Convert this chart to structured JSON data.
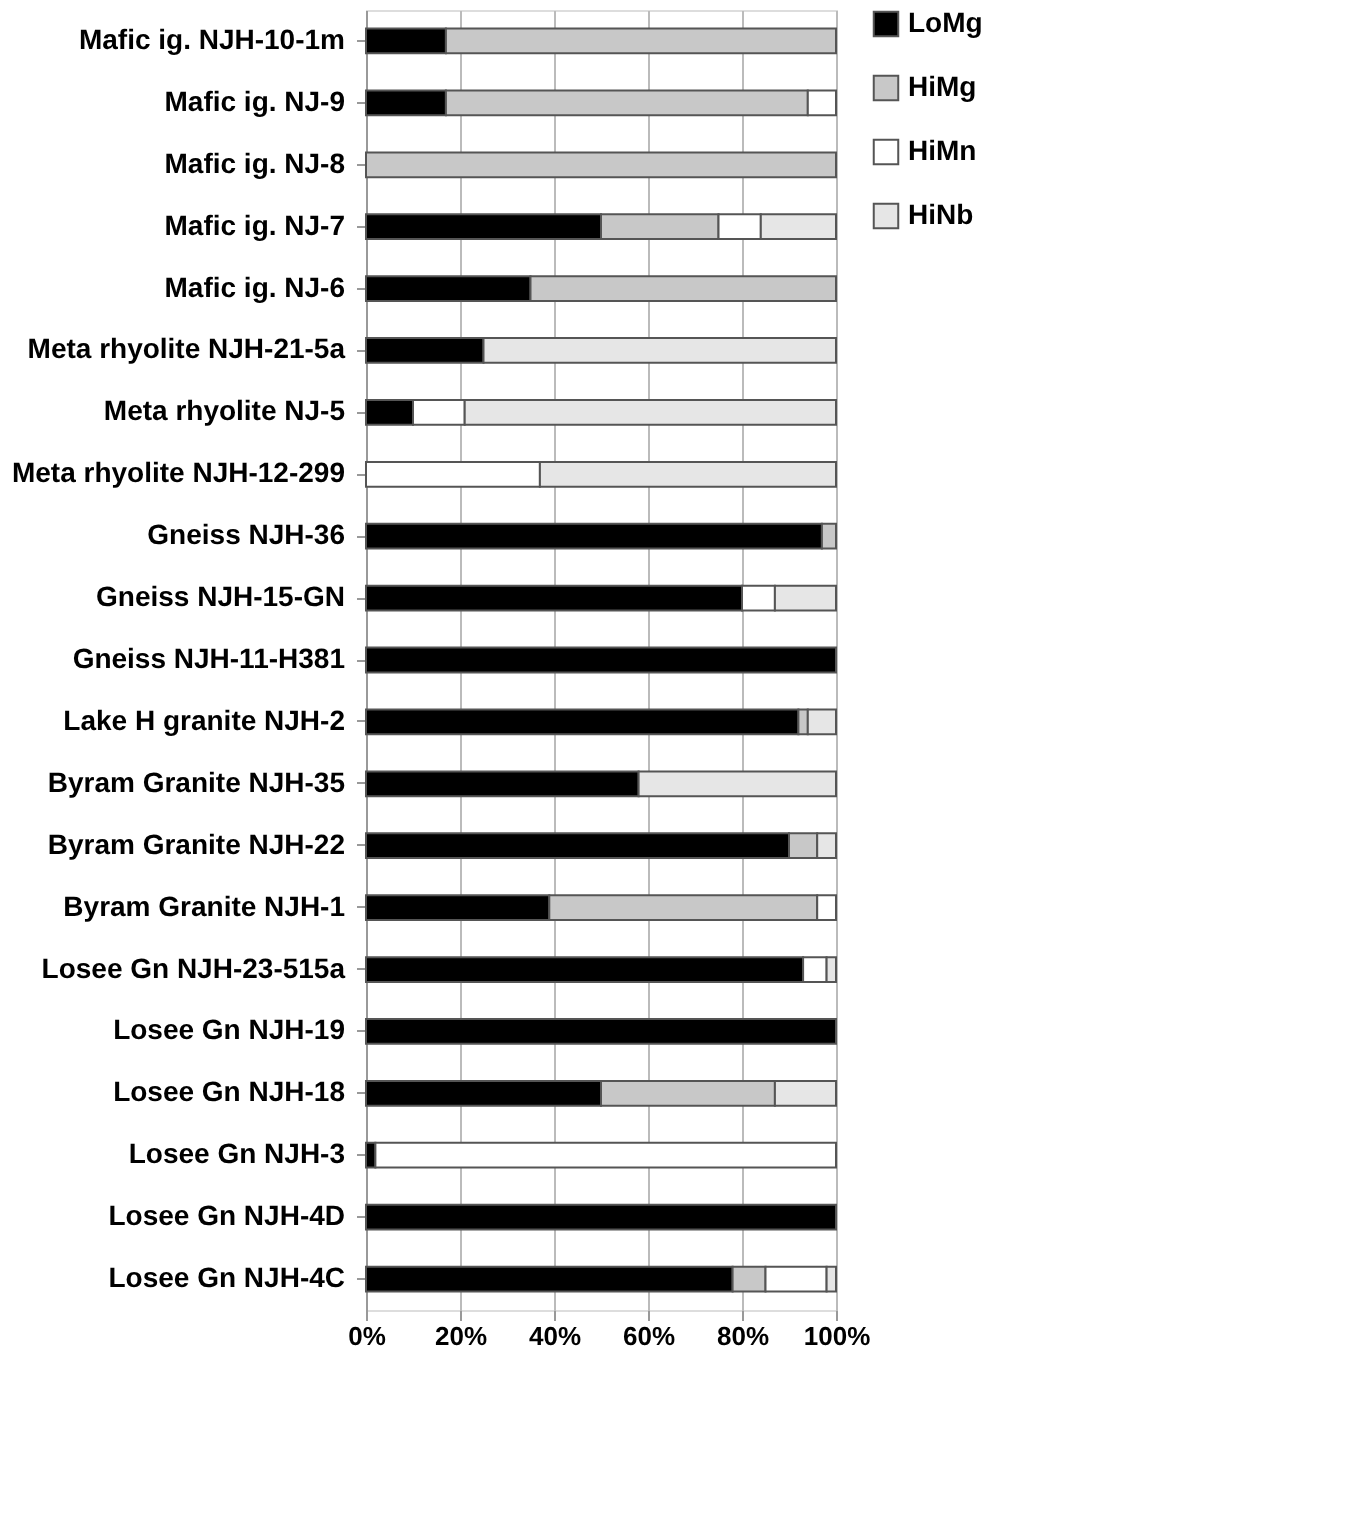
{
  "chart_data": {
    "type": "bar",
    "orientation": "horizontal",
    "stacked": true,
    "categories": [
      "Mafic ig. NJH-10-1m",
      "Mafic ig. NJ-9",
      "Mafic ig. NJ-8",
      "Mafic ig. NJ-7",
      "Mafic ig. NJ-6",
      "Meta rhyolite NJH-21-5a",
      "Meta rhyolite NJ-5",
      "Meta rhyolite NJH-12-299",
      "Gneiss NJH-36",
      "Gneiss NJH-15-GN",
      "Gneiss NJH-11-H381",
      "Lake H granite NJH-2",
      "Byram Granite NJH-35",
      "Byram Granite NJH-22",
      "Byram Granite NJH-1",
      "Losee Gn NJH-23-515a",
      "Losee Gn NJH-19",
      "Losee Gn NJH-18",
      "Losee Gn NJH-3",
      "Losee Gn NJH-4D",
      "Losee Gn NJH-4C"
    ],
    "series": [
      {
        "name": "LoMg",
        "color": "#000000",
        "values": [
          17,
          17,
          0,
          50,
          35,
          25,
          10,
          0,
          97,
          80,
          100,
          92,
          58,
          90,
          39,
          93,
          100,
          50,
          2,
          100,
          78
        ]
      },
      {
        "name": "HiMg",
        "color": "#c8c8c8",
        "values": [
          83,
          77,
          100,
          25,
          65,
          0,
          0,
          0,
          3,
          0,
          0,
          2,
          0,
          6,
          57,
          0,
          0,
          37,
          0,
          0,
          7
        ]
      },
      {
        "name": "HiMn",
        "color": "#ffffff",
        "values": [
          0,
          6,
          0,
          9,
          0,
          0,
          11,
          37,
          0,
          7,
          0,
          0,
          0,
          0,
          4,
          5,
          0,
          0,
          98,
          0,
          13
        ]
      },
      {
        "name": "HiNb",
        "color": "#e6e6e6",
        "values": [
          0,
          0,
          0,
          16,
          0,
          75,
          79,
          63,
          0,
          13,
          0,
          6,
          42,
          4,
          0,
          2,
          0,
          13,
          0,
          0,
          2
        ]
      }
    ],
    "xlim": [
      0,
      100
    ],
    "xticks": [
      {
        "value": 0,
        "label": "0%"
      },
      {
        "value": 20,
        "label": "20%"
      },
      {
        "value": 40,
        "label": "40%"
      },
      {
        "value": 60,
        "label": "60%"
      },
      {
        "value": 80,
        "label": "80%"
      },
      {
        "value": 100,
        "label": "100%"
      }
    ],
    "grid": "x",
    "legend": "right"
  }
}
